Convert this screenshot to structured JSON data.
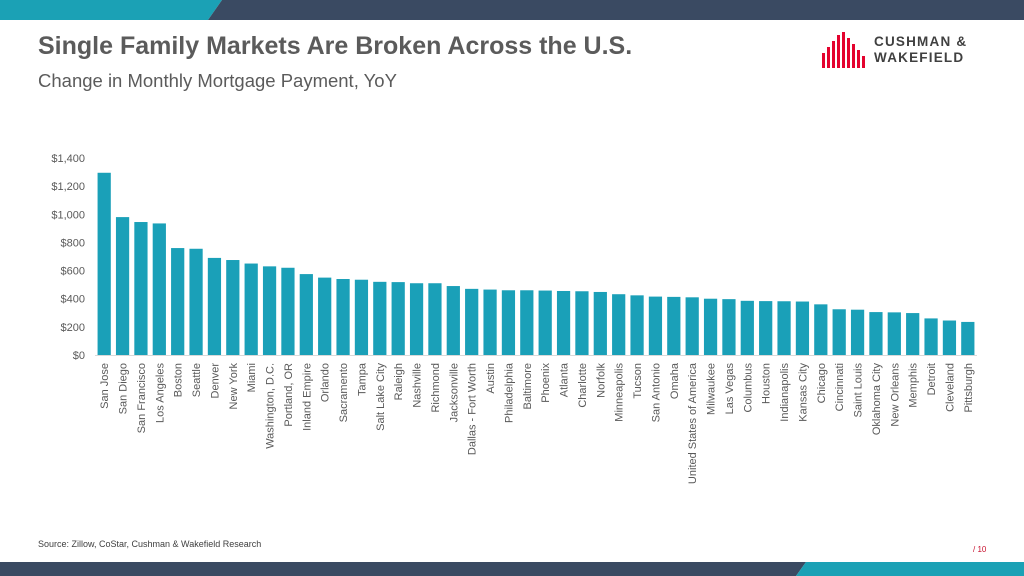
{
  "slide": {
    "title": "Single Family Markets Are Broken Across the U.S.",
    "subtitle": "Change in Monthly Mortgage Payment, YoY",
    "source": "Source: Zillow, CoStar, Cushman & Wakefield Research",
    "page_number": "/ 10",
    "logo": {
      "line1": "CUSHMAN &",
      "line2": "WAKEFIELD"
    }
  },
  "colors": {
    "bar": "#1aa0b8",
    "accent_teal": "#1ba1b5",
    "navy": "#3a4a62",
    "brand_red": "#e4032e",
    "text_gray": "#5b5b5b"
  },
  "chart_data": {
    "type": "bar",
    "title": "Change in Monthly Mortgage Payment, YoY",
    "xlabel": "",
    "ylabel": "",
    "ylim": [
      0,
      1400
    ],
    "yticks": [
      0,
      200,
      400,
      600,
      800,
      1000,
      1200,
      1400
    ],
    "ytick_labels": [
      "$0",
      "$200",
      "$400",
      "$600",
      "$800",
      "$1,000",
      "$1,200",
      "$1,400"
    ],
    "grid": false,
    "legend": "none",
    "categories": [
      "San Jose",
      "San Diego",
      "San Francisco",
      "Los Angeles",
      "Boston",
      "Seattle",
      "Denver",
      "New York",
      "Miami",
      "Washington, D.C.",
      "Portland, OR",
      "Inland Empire",
      "Orlando",
      "Sacramento",
      "Tampa",
      "Salt Lake City",
      "Raleigh",
      "Nashville",
      "Richmond",
      "Jacksonville",
      "Dallas - Fort Worth",
      "Austin",
      "Philadelphia",
      "Baltimore",
      "Phoenix",
      "Atlanta",
      "Charlotte",
      "Norfolk",
      "Minneapolis",
      "Tucson",
      "San Antonio",
      "Omaha",
      "United States of America",
      "Milwaukee",
      "Las Vegas",
      "Columbus",
      "Houston",
      "Indianapolis",
      "Kansas City",
      "Chicago",
      "Cincinnati",
      "Saint Louis",
      "Oklahoma City",
      "New Orleans",
      "Memphis",
      "Detroit",
      "Cleveland",
      "Pittsburgh"
    ],
    "values": [
      1295,
      980,
      945,
      935,
      760,
      755,
      690,
      675,
      650,
      630,
      620,
      575,
      550,
      540,
      535,
      520,
      518,
      510,
      510,
      490,
      470,
      465,
      460,
      460,
      458,
      455,
      453,
      448,
      432,
      424,
      415,
      413,
      410,
      400,
      397,
      385,
      383,
      382,
      380,
      360,
      325,
      322,
      305,
      303,
      298,
      260,
      245,
      235
    ]
  }
}
